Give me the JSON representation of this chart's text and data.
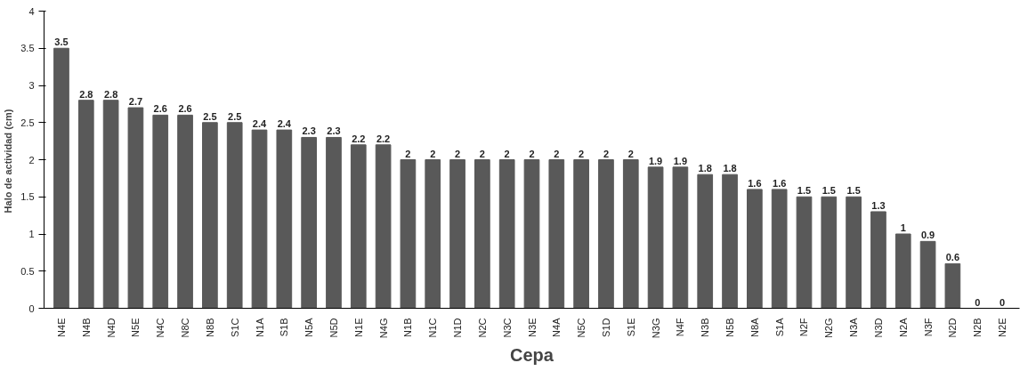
{
  "chart_data": {
    "type": "bar",
    "xlabel": "Cepa",
    "ylabel": "Halo de  actividad (cm)",
    "categories": [
      "N4E",
      "N4B",
      "N4D",
      "N5E",
      "N4C",
      "N8C",
      "N8B",
      "S1C",
      "N1A",
      "S1B",
      "N5A",
      "N5D",
      "N1E",
      "N4G",
      "N1B",
      "N1C",
      "N1D",
      "N2C",
      "N3C",
      "N3E",
      "N4A",
      "N5C",
      "S1D",
      "S1E",
      "N3G",
      "N4F",
      "N3B",
      "N5B",
      "N8A",
      "S1A",
      "N2F",
      "N2G",
      "N3A",
      "N3D",
      "N2A",
      "N3F",
      "N2D",
      "N2B",
      "N2E"
    ],
    "values": [
      3.5,
      2.8,
      2.8,
      2.7,
      2.6,
      2.6,
      2.5,
      2.5,
      2.4,
      2.4,
      2.3,
      2.3,
      2.2,
      2.2,
      2,
      2,
      2,
      2,
      2,
      2,
      2,
      2,
      2,
      2,
      1.9,
      1.9,
      1.8,
      1.8,
      1.6,
      1.6,
      1.5,
      1.5,
      1.5,
      1.3,
      1,
      0.9,
      0.6,
      0,
      0
    ],
    "color": "#595959",
    "ylim": [
      0,
      4
    ],
    "yticks": [
      0,
      0.5,
      1,
      1.5,
      2,
      2.5,
      3,
      3.5,
      4
    ],
    "grid": false,
    "data_labels": true
  }
}
